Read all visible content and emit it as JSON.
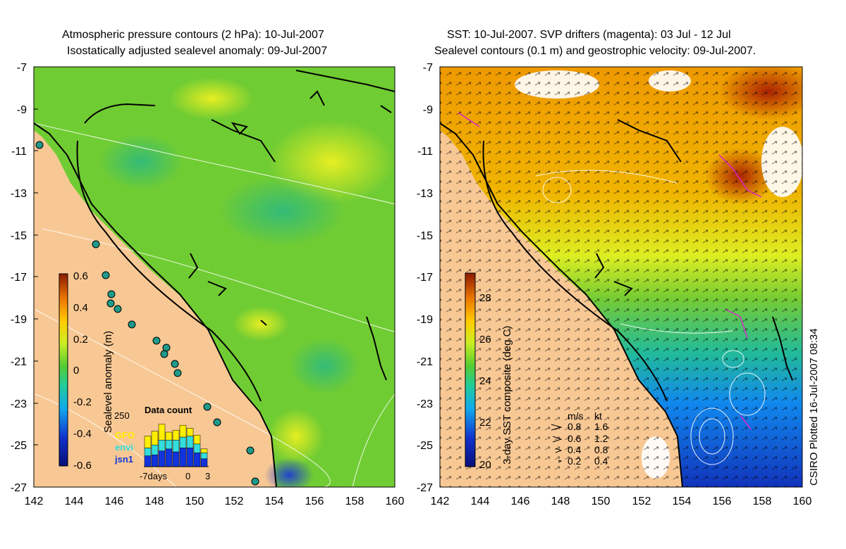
{
  "left_panel": {
    "title_line1": "Atmospheric pressure contours (2 hPa): 10-Jul-2007",
    "title_line2": "Isostatically adjusted sealevel anomaly: 09-Jul-2007",
    "y_ticks": [
      "-7",
      "-9",
      "-11",
      "-13",
      "-15",
      "-17",
      "-19",
      "-21",
      "-23",
      "-25",
      "-27"
    ],
    "x_ticks": [
      "142",
      "144",
      "146",
      "148",
      "150",
      "152",
      "154",
      "156",
      "158",
      "160"
    ],
    "colorbar": {
      "label": "Sealevel anomaly (m)",
      "ticks": [
        "0.6",
        "0.4",
        "0.2",
        "0",
        "-0.2",
        "-0.4",
        "-0.6"
      ]
    },
    "data_count": {
      "title": "Data count",
      "ymax_label": "250",
      "legend": [
        "GFO",
        "envi",
        "jsn1"
      ],
      "legend_colors": [
        "#ffee00",
        "#33dddd",
        "#1133dd"
      ],
      "x_labels": [
        "-7days",
        "0",
        "3"
      ],
      "bars": [
        {
          "gfo": 60,
          "envi": 40,
          "jsn1": 55
        },
        {
          "gfo": 70,
          "envi": 50,
          "jsn1": 60
        },
        {
          "gfo": 80,
          "envi": 55,
          "jsn1": 80
        },
        {
          "gfo": 40,
          "envi": 45,
          "jsn1": 90
        },
        {
          "gfo": 50,
          "envi": 60,
          "jsn1": 75
        },
        {
          "gfo": 60,
          "envi": 55,
          "jsn1": 95
        },
        {
          "gfo": 40,
          "envi": 60,
          "jsn1": 95
        },
        {
          "gfo": 45,
          "envi": 45,
          "jsn1": 70
        },
        {
          "gfo": 20,
          "envi": 30,
          "jsn1": 40
        }
      ]
    }
  },
  "right_panel": {
    "title_line1": "SST: 10-Jul-2007. SVP drifters (magenta): 03 Jul - 12 Jul",
    "title_line2": "Sealevel contours (0.1 m) and geostrophic velocity: 09-Jul-2007.",
    "y_ticks": [
      "-7",
      "-9",
      "-11",
      "-13",
      "-15",
      "-17",
      "-19",
      "-21",
      "-23",
      "-25",
      "-27"
    ],
    "x_ticks": [
      "142",
      "144",
      "146",
      "148",
      "150",
      "152",
      "154",
      "156",
      "158",
      "160"
    ],
    "colorbar": {
      "label": "3-day SST composite (deg C)",
      "ticks": [
        "28",
        "26",
        "24",
        "22",
        "20"
      ]
    },
    "velocity_legend": {
      "header_ms": "m/s",
      "header_kt": "kt",
      "rows": [
        {
          "ms": "0.8",
          "kt": "1.6"
        },
        {
          "ms": "0.6",
          "kt": "1.2"
        },
        {
          "ms": "0.4",
          "kt": "0.8"
        },
        {
          "ms": "0.2",
          "kt": "0.4"
        }
      ]
    }
  },
  "credit": "CSIRO Plotted 16-Jul-2007 08:34",
  "colors": {
    "land": "#f8c894",
    "sea_green": "#66cc33",
    "warm": "#ee8800",
    "cool": "#1144cc"
  }
}
